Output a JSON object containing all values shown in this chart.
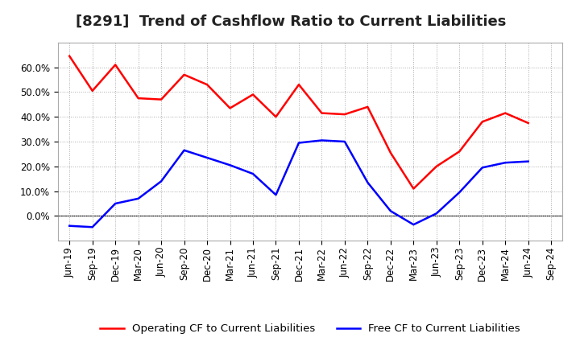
{
  "title": "[8291]  Trend of Cashflow Ratio to Current Liabilities",
  "x_labels": [
    "Jun-19",
    "Sep-19",
    "Dec-19",
    "Mar-20",
    "Jun-20",
    "Sep-20",
    "Dec-20",
    "Mar-21",
    "Jun-21",
    "Sep-21",
    "Dec-21",
    "Mar-22",
    "Jun-22",
    "Sep-22",
    "Dec-22",
    "Mar-23",
    "Jun-23",
    "Sep-23",
    "Dec-23",
    "Mar-24",
    "Jun-24",
    "Sep-24"
  ],
  "operating_cf": [
    0.645,
    0.505,
    0.61,
    0.475,
    0.47,
    0.57,
    0.53,
    0.435,
    0.49,
    0.4,
    0.53,
    0.415,
    0.41,
    0.44,
    0.255,
    0.11,
    0.2,
    0.26,
    0.38,
    0.415,
    0.375,
    null
  ],
  "free_cf": [
    -0.04,
    -0.045,
    0.05,
    0.07,
    0.14,
    0.265,
    0.235,
    0.205,
    0.17,
    0.085,
    0.295,
    0.305,
    0.3,
    0.135,
    0.02,
    -0.035,
    0.01,
    0.095,
    0.195,
    0.215,
    0.22,
    null
  ],
  "operating_color": "#ff0000",
  "free_color": "#0000ff",
  "ylim_min": -0.1,
  "ylim_max": 0.7,
  "y_ticks": [
    0.0,
    0.1,
    0.2,
    0.3,
    0.4,
    0.5,
    0.6
  ],
  "legend_operating": "Operating CF to Current Liabilities",
  "legend_free": "Free CF to Current Liabilities",
  "bg_color": "#ffffff",
  "plot_bg_color": "#ffffff",
  "grid_color": "#aaaaaa",
  "title_fontsize": 13,
  "axis_fontsize": 8.5,
  "legend_fontsize": 9.5,
  "line_width": 1.8
}
